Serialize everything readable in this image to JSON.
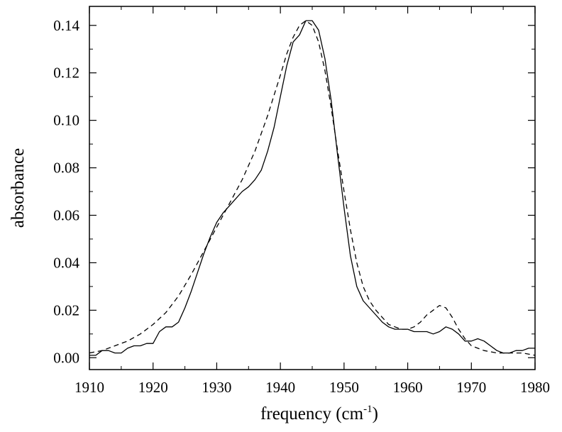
{
  "chart_data": {
    "type": "line",
    "xlabel": "frequency (cm",
    "xlabel_sup": "-1",
    "xlabel_end": ")",
    "ylabel": "absorbance",
    "xlim": [
      1910,
      1980
    ],
    "ylim": [
      -0.005,
      0.148
    ],
    "x_ticks": [
      1910,
      1920,
      1930,
      1940,
      1950,
      1960,
      1970,
      1980
    ],
    "y_ticks": [
      0.0,
      0.02,
      0.04,
      0.06,
      0.08,
      0.1,
      0.12,
      0.14
    ],
    "x_tick_labels": [
      "1910",
      "1920",
      "1930",
      "1940",
      "1950",
      "1960",
      "1970",
      "1980"
    ],
    "y_tick_labels": [
      "0.00",
      "0.02",
      "0.04",
      "0.06",
      "0.08",
      "0.10",
      "0.12",
      "0.14"
    ],
    "grid": false,
    "series": [
      {
        "style": "solid",
        "x": [
          1910,
          1911,
          1912,
          1913,
          1914,
          1915,
          1916,
          1917,
          1918,
          1919,
          1920,
          1921,
          1922,
          1923,
          1924,
          1925,
          1926,
          1927,
          1928,
          1929,
          1930,
          1931,
          1932,
          1933,
          1934,
          1935,
          1936,
          1937,
          1938,
          1939,
          1940,
          1941,
          1942,
          1943,
          1944,
          1945,
          1946,
          1947,
          1948,
          1949,
          1950,
          1951,
          1952,
          1953,
          1954,
          1955,
          1956,
          1957,
          1958,
          1959,
          1960,
          1961,
          1962,
          1963,
          1964,
          1965,
          1966,
          1967,
          1968,
          1969,
          1970,
          1971,
          1972,
          1973,
          1974,
          1975,
          1976,
          1977,
          1978,
          1979,
          1980
        ],
        "y": [
          0.001,
          0.001,
          0.003,
          0.003,
          0.002,
          0.002,
          0.004,
          0.005,
          0.005,
          0.006,
          0.006,
          0.011,
          0.013,
          0.013,
          0.015,
          0.021,
          0.028,
          0.036,
          0.044,
          0.051,
          0.057,
          0.061,
          0.064,
          0.067,
          0.07,
          0.072,
          0.075,
          0.079,
          0.087,
          0.097,
          0.11,
          0.123,
          0.133,
          0.136,
          0.142,
          0.142,
          0.138,
          0.126,
          0.108,
          0.085,
          0.063,
          0.043,
          0.03,
          0.024,
          0.021,
          0.018,
          0.015,
          0.013,
          0.012,
          0.012,
          0.012,
          0.011,
          0.011,
          0.011,
          0.01,
          0.011,
          0.013,
          0.012,
          0.01,
          0.007,
          0.007,
          0.008,
          0.007,
          0.005,
          0.003,
          0.002,
          0.002,
          0.003,
          0.003,
          0.004,
          0.004
        ]
      },
      {
        "style": "dashed",
        "x": [
          1910,
          1912,
          1914,
          1916,
          1918,
          1920,
          1922,
          1924,
          1926,
          1928,
          1930,
          1932,
          1934,
          1936,
          1938,
          1940,
          1941,
          1942,
          1943,
          1944,
          1945,
          1946,
          1947,
          1948,
          1949,
          1950,
          1951,
          1952,
          1953,
          1954,
          1955,
          1956,
          1957,
          1958,
          1959,
          1960,
          1961,
          1962,
          1963,
          1964,
          1965,
          1966,
          1967,
          1968,
          1969,
          1970,
          1972,
          1974,
          1976,
          1978,
          1980
        ],
        "y": [
          0.002,
          0.003,
          0.005,
          0.007,
          0.01,
          0.014,
          0.019,
          0.026,
          0.035,
          0.045,
          0.055,
          0.065,
          0.075,
          0.087,
          0.102,
          0.119,
          0.128,
          0.135,
          0.14,
          0.142,
          0.14,
          0.133,
          0.121,
          0.105,
          0.087,
          0.07,
          0.054,
          0.04,
          0.03,
          0.024,
          0.02,
          0.017,
          0.014,
          0.013,
          0.012,
          0.012,
          0.013,
          0.015,
          0.018,
          0.02,
          0.022,
          0.021,
          0.017,
          0.012,
          0.008,
          0.005,
          0.003,
          0.002,
          0.002,
          0.002,
          0.001
        ]
      }
    ]
  }
}
